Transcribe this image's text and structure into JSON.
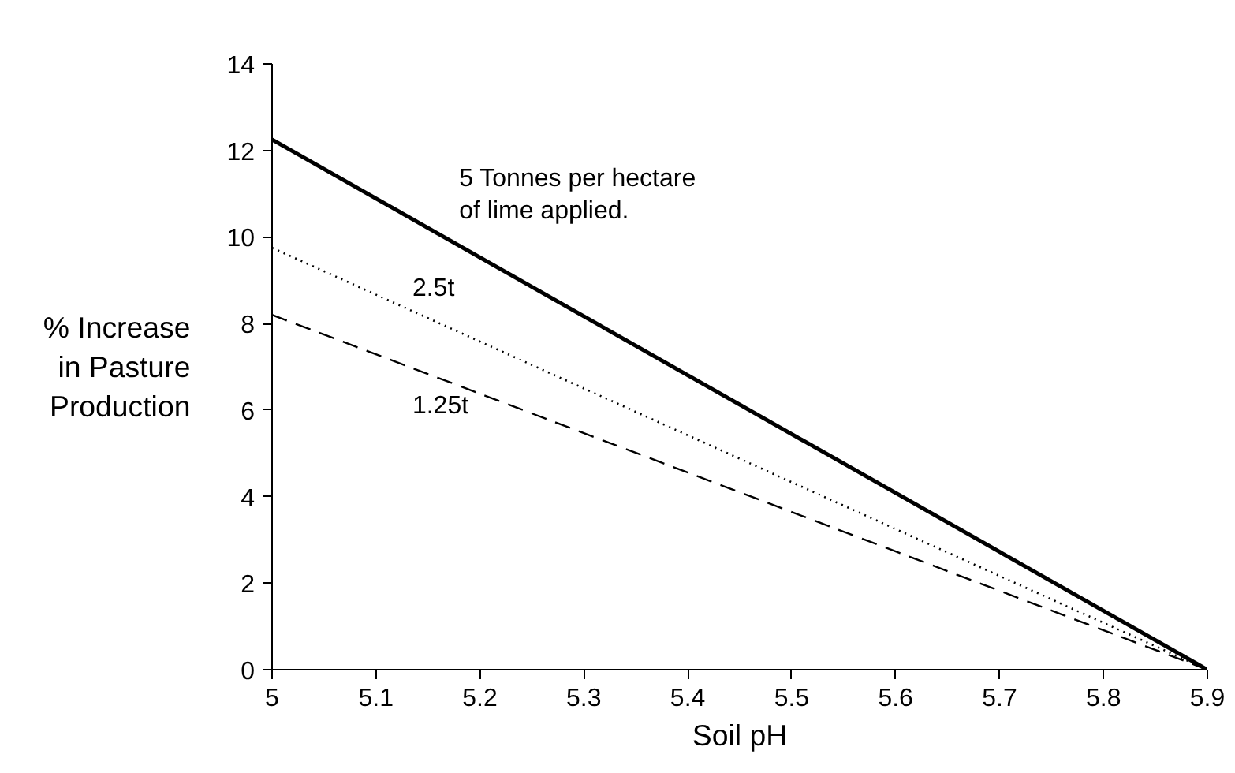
{
  "chart_data": {
    "type": "line",
    "xlabel": "Soil pH",
    "ylabel": "% Increase\nin Pasture\nProduction",
    "x": [
      5,
      5.9
    ],
    "series": [
      {
        "name": "5   Tonnes per hectare\nof lime applied.",
        "values": [
          12.25,
          0
        ],
        "color": "#000000",
        "line_style": "solid"
      },
      {
        "name": "2.5t",
        "values": [
          9.75,
          0
        ],
        "color": "#000000",
        "line_style": "dotted"
      },
      {
        "name": "1.25t",
        "values": [
          8.2,
          0
        ],
        "color": "#000000",
        "line_style": "dashed"
      }
    ],
    "xlim": [
      5,
      5.9
    ],
    "ylim": [
      0,
      14
    ],
    "xticks": [
      5,
      5.1,
      5.2,
      5.3,
      5.4,
      5.5,
      5.6,
      5.7,
      5.8,
      5.9
    ],
    "yticks": [
      0,
      2,
      4,
      6,
      8,
      10,
      12,
      14
    ],
    "grid": false,
    "legend": false,
    "marker": "none"
  }
}
